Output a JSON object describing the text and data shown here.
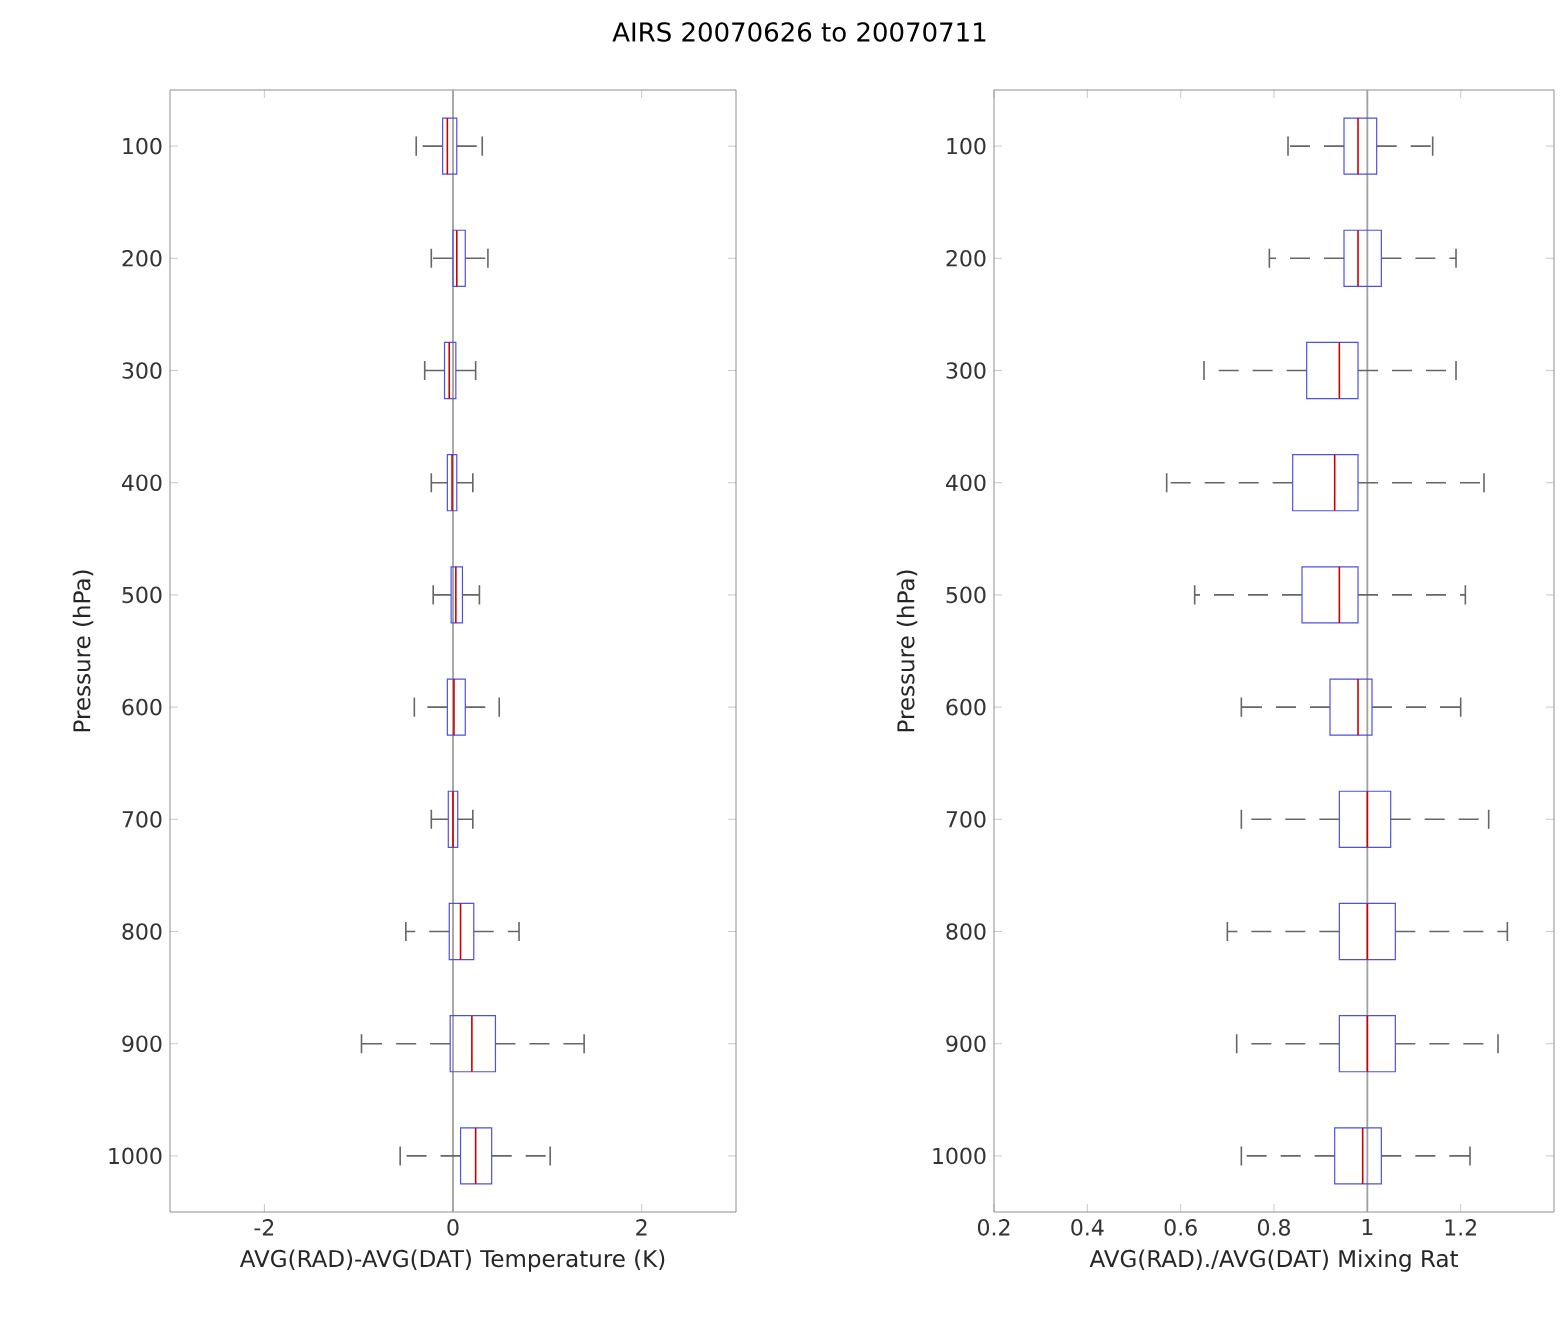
{
  "chart_data": [
    {
      "type": "box",
      "title": "AIRS 20070626 to 20070711",
      "orientation": "horizontal",
      "xlabel": "AVG(RAD)-AVG(DAT) Temperature (K)",
      "ylabel": "Pressure (hPa)",
      "categories": [
        "100",
        "200",
        "300",
        "400",
        "500",
        "600",
        "700",
        "800",
        "900",
        "1000"
      ],
      "xlim": [
        -3,
        3
      ],
      "xticks": [
        -2,
        0,
        2
      ],
      "line_style": "dashed",
      "grid": false,
      "ref_lines": [
        {
          "axis": "x",
          "value": 0,
          "color": "#a0a0a0"
        }
      ],
      "series": [
        {
          "color": "#5050e0",
          "boxes": [
            {
              "low": -0.39,
              "q1": -0.11,
              "median": -0.06,
              "q3": 0.04,
              "high": 0.31
            },
            {
              "low": -0.23,
              "q1": 0.0,
              "median": 0.04,
              "q3": 0.13,
              "high": 0.37
            },
            {
              "low": -0.3,
              "q1": -0.09,
              "median": -0.04,
              "q3": 0.03,
              "high": 0.24
            },
            {
              "low": -0.23,
              "q1": -0.06,
              "median": -0.01,
              "q3": 0.04,
              "high": 0.21
            },
            {
              "low": -0.21,
              "q1": -0.02,
              "median": 0.03,
              "q3": 0.1,
              "high": 0.28
            },
            {
              "low": -0.41,
              "q1": -0.06,
              "median": 0.01,
              "q3": 0.13,
              "high": 0.49
            },
            {
              "low": -0.23,
              "q1": -0.05,
              "median": 0.0,
              "q3": 0.05,
              "high": 0.21
            },
            {
              "low": -0.5,
              "q1": -0.04,
              "median": 0.08,
              "q3": 0.22,
              "high": 0.7
            },
            {
              "low": -0.97,
              "q1": -0.03,
              "median": 0.2,
              "q3": 0.45,
              "high": 1.39
            },
            {
              "low": -0.56,
              "q1": 0.08,
              "median": 0.24,
              "q3": 0.41,
              "high": 1.03
            }
          ]
        }
      ]
    },
    {
      "type": "box",
      "orientation": "horizontal",
      "xlabel": "AVG(RAD)./AVG(DAT) Mixing Rat",
      "ylabel": "Pressure (hPa)",
      "categories": [
        "100",
        "200",
        "300",
        "400",
        "500",
        "600",
        "700",
        "800",
        "900",
        "1000"
      ],
      "xlim": [
        0.2,
        1.4
      ],
      "xticks": [
        0.2,
        0.4,
        0.6,
        0.8,
        1,
        1.2
      ],
      "line_style": "dashed",
      "grid": false,
      "ref_lines": [
        {
          "axis": "x",
          "value": 1,
          "color": "#a0a0a0"
        }
      ],
      "series": [
        {
          "color": "#5050e0",
          "boxes": [
            {
              "low": 0.83,
              "q1": 0.95,
              "median": 0.98,
              "q3": 1.02,
              "high": 1.14
            },
            {
              "low": 0.79,
              "q1": 0.95,
              "median": 0.98,
              "q3": 1.03,
              "high": 1.19
            },
            {
              "low": 0.65,
              "q1": 0.87,
              "median": 0.94,
              "q3": 0.98,
              "high": 1.19
            },
            {
              "low": 0.57,
              "q1": 0.84,
              "median": 0.93,
              "q3": 0.98,
              "high": 1.25
            },
            {
              "low": 0.63,
              "q1": 0.86,
              "median": 0.94,
              "q3": 0.98,
              "high": 1.21
            },
            {
              "low": 0.73,
              "q1": 0.92,
              "median": 0.98,
              "q3": 1.01,
              "high": 1.2
            },
            {
              "low": 0.73,
              "q1": 0.94,
              "median": 1.0,
              "q3": 1.05,
              "high": 1.26
            },
            {
              "low": 0.7,
              "q1": 0.94,
              "median": 1.0,
              "q3": 1.06,
              "high": 1.3
            },
            {
              "low": 0.72,
              "q1": 0.94,
              "median": 1.0,
              "q3": 1.06,
              "high": 1.28
            },
            {
              "low": 0.73,
              "q1": 0.93,
              "median": 0.99,
              "q3": 1.03,
              "high": 1.22
            }
          ]
        }
      ]
    }
  ]
}
